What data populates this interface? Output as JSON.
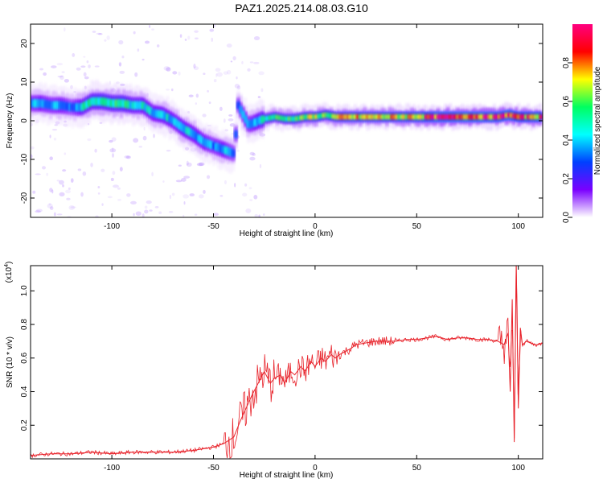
{
  "page": {
    "title": "PAZ1.2025.214.08.03.G10"
  },
  "chart_data": [
    {
      "type": "heatmap",
      "title": "PAZ1.2025.214.08.03.G10",
      "xlabel": "Height of straight line (km)",
      "ylabel": "Frequency (Hz)",
      "xlim": [
        -140,
        112
      ],
      "ylim": [
        -25,
        25
      ],
      "x_ticks": [
        -100,
        -50,
        0,
        50,
        100
      ],
      "x_tick_labels": [
        "-100",
        "-50",
        "0",
        "50",
        "100"
      ],
      "y_ticks": [
        -20,
        -10,
        0,
        10,
        20
      ],
      "y_tick_labels": [
        "-20",
        "-10",
        "0",
        "10",
        "20"
      ],
      "colorbar": {
        "label": "Normalized spectral amplitude",
        "range": [
          0,
          1
        ],
        "ticks": [
          0.0,
          0.2,
          0.4,
          0.6,
          0.8
        ],
        "tick_labels": [
          "0.0",
          "0.2",
          "0.4",
          "0.6",
          "0.8"
        ],
        "colormap": [
          "#ffffff",
          "#7a00ff",
          "#0040ff",
          "#00ffff",
          "#00ff60",
          "#ffff00",
          "#ff0000",
          "#ff0080"
        ]
      },
      "ridge": {
        "x": [
          -140,
          -135,
          -130,
          -125,
          -120,
          -115,
          -110,
          -105,
          -100,
          -95,
          -90,
          -85,
          -80,
          -75,
          -70,
          -65,
          -60,
          -55,
          -50,
          -45,
          -40,
          -38,
          -35,
          -33,
          -30,
          -28,
          -25,
          -20,
          -15,
          -10,
          -5,
          0,
          5,
          10,
          15,
          20,
          30,
          40,
          50,
          60,
          70,
          80,
          90,
          95,
          100,
          105,
          110,
          112
        ],
        "freq": [
          4.5,
          4.5,
          4.0,
          4.0,
          3.5,
          3.5,
          5.0,
          5.0,
          4.5,
          4.5,
          4.0,
          4.0,
          2.0,
          1.5,
          0.0,
          -2.0,
          -3.5,
          -5.5,
          -6.5,
          -7.5,
          -8.5,
          4.0,
          1.0,
          -1.0,
          -0.5,
          0.0,
          0.5,
          1.0,
          0.5,
          0.5,
          1.0,
          1.0,
          1.5,
          1.0,
          1.0,
          1.0,
          1.0,
          1.0,
          1.0,
          1.0,
          1.0,
          1.0,
          1.0,
          1.5,
          1.0,
          1.0,
          1.0,
          1.0
        ],
        "amplitude": [
          0.35,
          0.4,
          0.35,
          0.4,
          0.3,
          0.45,
          0.5,
          0.55,
          0.5,
          0.55,
          0.45,
          0.45,
          0.4,
          0.45,
          0.4,
          0.45,
          0.4,
          0.4,
          0.35,
          0.4,
          0.3,
          0.3,
          0.35,
          0.35,
          0.4,
          0.45,
          0.5,
          0.55,
          0.55,
          0.6,
          0.6,
          0.65,
          0.6,
          0.65,
          0.7,
          0.7,
          0.7,
          0.7,
          0.75,
          0.9,
          0.9,
          0.9,
          0.85,
          0.9,
          0.8,
          0.8,
          0.8,
          0.8
        ]
      }
    },
    {
      "type": "line",
      "xlabel": "Height of straight line (km)",
      "ylabel": "SNR (10 * v/v)",
      "y_multiplier_label": "(x10",
      "y_multiplier_exp": "4",
      "y_multiplier_close": ")",
      "xlim": [
        -140,
        112
      ],
      "ylim": [
        0,
        1.15
      ],
      "x_ticks": [
        -100,
        -50,
        0,
        50,
        100
      ],
      "x_tick_labels": [
        "-100",
        "-50",
        "0",
        "50",
        "100"
      ],
      "y_ticks": [
        0.2,
        0.4,
        0.6,
        0.8,
        1.0
      ],
      "y_tick_labels": [
        "0.2",
        "0.4",
        "0.6",
        "0.8",
        "1.0"
      ],
      "color": "#e8232b",
      "series": [
        {
          "x": [
            -140,
            -130,
            -120,
            -110,
            -100,
            -90,
            -80,
            -70,
            -60,
            -55,
            -50,
            -45,
            -40,
            -37,
            -34,
            -31,
            -28,
            -25,
            -22,
            -20,
            -17,
            -15,
            -12,
            -10,
            -7,
            -5,
            -2,
            0,
            3,
            5,
            8,
            10,
            12,
            15,
            18,
            20,
            25,
            30,
            35,
            40,
            45,
            50,
            55,
            60,
            65,
            70,
            75,
            80,
            85,
            90,
            93,
            95,
            96,
            97,
            98,
            99,
            100,
            101,
            102,
            104,
            106,
            108,
            110,
            112
          ],
          "y": [
            0.02,
            0.03,
            0.03,
            0.04,
            0.03,
            0.04,
            0.04,
            0.04,
            0.05,
            0.06,
            0.07,
            0.09,
            0.13,
            0.22,
            0.3,
            0.38,
            0.45,
            0.52,
            0.45,
            0.48,
            0.5,
            0.45,
            0.52,
            0.5,
            0.55,
            0.52,
            0.58,
            0.55,
            0.6,
            0.58,
            0.62,
            0.6,
            0.62,
            0.64,
            0.66,
            0.68,
            0.69,
            0.7,
            0.7,
            0.7,
            0.71,
            0.71,
            0.72,
            0.73,
            0.71,
            0.72,
            0.72,
            0.71,
            0.71,
            0.7,
            0.68,
            0.75,
            0.4,
            0.95,
            0.1,
            1.15,
            0.3,
            0.78,
            0.68,
            0.7,
            0.69,
            0.68,
            0.68,
            0.69
          ]
        }
      ]
    }
  ]
}
